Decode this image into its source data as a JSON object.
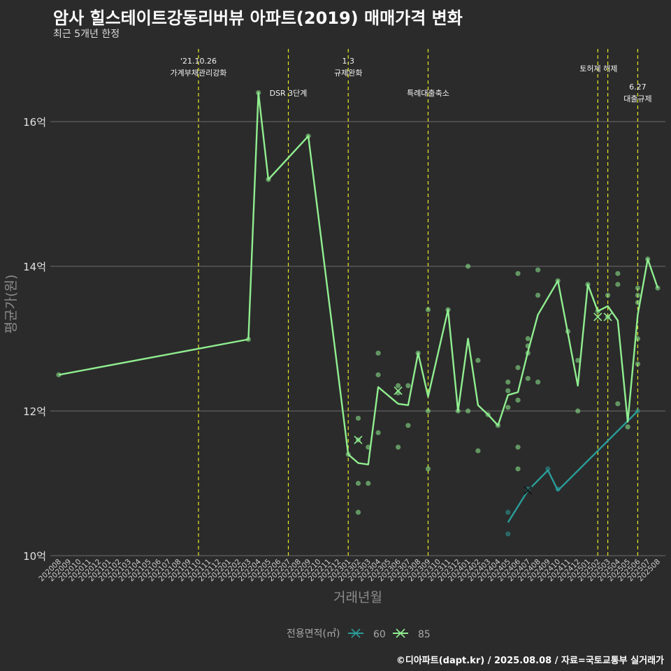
{
  "chart_data": {
    "type": "line",
    "title": "암사 힐스테이트강동리버뷰 아파트(2019) 매매가격 변화",
    "subtitle": "최근 5개년 한정",
    "credit": "©디아파트(dapt.kr) / 2025.08.08 / 자료=국토교통부 실거래가",
    "xlabel": "거래년월",
    "ylabel": "평균가(원)",
    "ylim": [
      10,
      16.9
    ],
    "y_ticks": [
      {
        "value": 10,
        "label": "10억"
      },
      {
        "value": 12,
        "label": "12억"
      },
      {
        "value": 14,
        "label": "14억"
      },
      {
        "value": 16,
        "label": "16억"
      }
    ],
    "grid": "horizontal",
    "categories": [
      "202008",
      "202009",
      "202010",
      "202011",
      "202012",
      "202101",
      "202102",
      "202103",
      "202104",
      "202105",
      "202106",
      "202107",
      "202108",
      "202109",
      "202110",
      "202111",
      "202112",
      "202201",
      "202202",
      "202203",
      "202204",
      "202205",
      "202206",
      "202207",
      "202208",
      "202209",
      "202210",
      "202211",
      "202212",
      "202301",
      "202302",
      "202303",
      "202304",
      "202305",
      "202306",
      "202307",
      "202308",
      "202309",
      "202310",
      "202311",
      "202312",
      "202401",
      "202402",
      "202403",
      "202404",
      "202405",
      "202406",
      "202407",
      "202408",
      "202409",
      "202410",
      "202411",
      "202412",
      "202501",
      "202502",
      "202503",
      "202504",
      "202505",
      "202506",
      "202507",
      "202508"
    ],
    "events": [
      {
        "month": "202110",
        "lines": [
          "'21.10.26",
          "가계부채관리강화"
        ],
        "level": "high"
      },
      {
        "month": "202207",
        "lines": [
          "DSR 3단계"
        ],
        "level": "low"
      },
      {
        "month": "202301",
        "lines": [
          "1.3",
          "규제완화"
        ],
        "level": "high"
      },
      {
        "month": "202309",
        "lines": [
          "특례대출축소"
        ],
        "level": "low"
      },
      {
        "month": "202502",
        "lines": [
          "토허제 해제"
        ],
        "level": "mid",
        "align": "end"
      },
      {
        "month": "202503",
        "lines": [],
        "level": "mid"
      },
      {
        "month": "202506",
        "lines": [
          "6.27",
          "대출규제"
        ],
        "level": "low2"
      }
    ],
    "legend": {
      "title": "전용면적(㎡)",
      "position": "bottom"
    },
    "series": [
      {
        "name": "60",
        "color": "#2a9d9a",
        "points": [
          [
            "202405",
            10.46
          ],
          [
            "202407",
            10.9
          ],
          [
            "202409",
            11.18
          ],
          [
            "202410",
            10.9
          ],
          [
            "202506",
            12.0
          ]
        ],
        "crosses": [
          [
            "202407",
            10.9
          ]
        ],
        "scatter": [
          [
            "202405",
            10.6
          ],
          [
            "202405",
            10.3
          ],
          [
            "202407",
            10.92
          ],
          [
            "202409",
            11.2
          ],
          [
            "202410",
            10.92
          ],
          [
            "202506",
            12.0
          ]
        ]
      },
      {
        "name": "85",
        "color": "#90ee90",
        "points": [
          [
            "202008",
            12.5
          ],
          [
            "202203",
            12.99
          ],
          [
            "202204",
            16.4
          ],
          [
            "202205",
            15.2
          ],
          [
            "202209",
            15.8
          ],
          [
            "202301",
            11.4
          ],
          [
            "202302",
            11.28
          ],
          [
            "202303",
            11.26
          ],
          [
            "202304",
            12.33
          ],
          [
            "202306",
            12.1
          ],
          [
            "202307",
            12.08
          ],
          [
            "202308",
            12.8
          ],
          [
            "202309",
            12.2
          ],
          [
            "202311",
            13.4
          ],
          [
            "202312",
            12.0
          ],
          [
            "202401",
            13.0
          ],
          [
            "202402",
            12.08
          ],
          [
            "202403",
            11.95
          ],
          [
            "202404",
            11.8
          ],
          [
            "202405",
            12.22
          ],
          [
            "202406",
            12.26
          ],
          [
            "202407",
            12.82
          ],
          [
            "202408",
            13.33
          ],
          [
            "202410",
            13.8
          ],
          [
            "202412",
            12.35
          ],
          [
            "202501",
            13.75
          ],
          [
            "202502",
            13.38
          ],
          [
            "202503",
            13.45
          ],
          [
            "202504",
            13.25
          ],
          [
            "202505",
            11.85
          ],
          [
            "202506",
            13.33
          ],
          [
            "202507",
            14.1
          ],
          [
            "202508",
            13.7
          ]
        ],
        "crosses": [
          [
            "202302",
            11.6
          ],
          [
            "202306",
            12.28
          ],
          [
            "202502",
            13.3
          ],
          [
            "202503",
            13.3
          ]
        ],
        "scatter": [
          [
            "202008",
            12.5
          ],
          [
            "202203",
            12.99
          ],
          [
            "202204",
            16.4
          ],
          [
            "202205",
            15.2
          ],
          [
            "202209",
            15.8
          ],
          [
            "202301",
            11.4
          ],
          [
            "202302",
            11.9
          ],
          [
            "202302",
            11.6
          ],
          [
            "202302",
            11.0
          ],
          [
            "202302",
            10.6
          ],
          [
            "202303",
            11.5
          ],
          [
            "202303",
            11.0
          ],
          [
            "202304",
            12.8
          ],
          [
            "202304",
            12.5
          ],
          [
            "202304",
            11.7
          ],
          [
            "202306",
            12.35
          ],
          [
            "202306",
            12.25
          ],
          [
            "202306",
            11.5
          ],
          [
            "202307",
            12.35
          ],
          [
            "202307",
            11.8
          ],
          [
            "202308",
            12.8
          ],
          [
            "202309",
            13.4
          ],
          [
            "202309",
            12.0
          ],
          [
            "202309",
            11.2
          ],
          [
            "202311",
            13.4
          ],
          [
            "202312",
            12.0
          ],
          [
            "202401",
            14.0
          ],
          [
            "202401",
            12.0
          ],
          [
            "202402",
            12.7
          ],
          [
            "202402",
            11.45
          ],
          [
            "202403",
            11.95
          ],
          [
            "202404",
            11.8
          ],
          [
            "202405",
            12.4
          ],
          [
            "202405",
            12.28
          ],
          [
            "202405",
            12.05
          ],
          [
            "202406",
            13.9
          ],
          [
            "202406",
            12.6
          ],
          [
            "202406",
            12.15
          ],
          [
            "202406",
            11.5
          ],
          [
            "202406",
            11.2
          ],
          [
            "202407",
            13.0
          ],
          [
            "202407",
            12.9
          ],
          [
            "202407",
            12.8
          ],
          [
            "202407",
            12.45
          ],
          [
            "202408",
            13.95
          ],
          [
            "202408",
            13.6
          ],
          [
            "202408",
            12.4
          ],
          [
            "202410",
            13.8
          ],
          [
            "202411",
            13.1
          ],
          [
            "202412",
            12.7
          ],
          [
            "202412",
            12.0
          ],
          [
            "202501",
            13.75
          ],
          [
            "202502",
            13.38
          ],
          [
            "202503",
            13.6
          ],
          [
            "202503",
            13.3
          ],
          [
            "202504",
            13.9
          ],
          [
            "202504",
            13.75
          ],
          [
            "202504",
            12.1
          ],
          [
            "202505",
            11.78
          ],
          [
            "202506",
            13.7
          ],
          [
            "202506",
            13.6
          ],
          [
            "202506",
            13.5
          ],
          [
            "202506",
            13.0
          ],
          [
            "202506",
            12.65
          ],
          [
            "202507",
            14.1
          ],
          [
            "202508",
            13.7
          ]
        ]
      }
    ]
  }
}
